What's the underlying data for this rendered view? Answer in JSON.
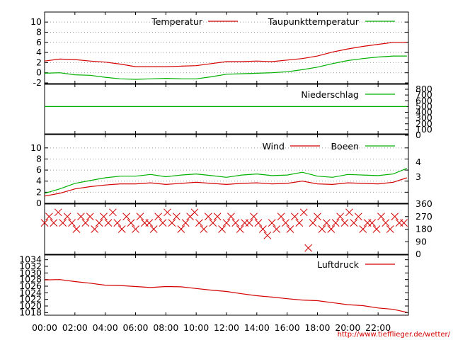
{
  "chart_data": [
    {
      "type": "line",
      "ylim": [
        -2,
        11
      ],
      "yticks": [
        "10",
        "8",
        "6",
        "4",
        "2",
        "0",
        "-2"
      ],
      "grid": true,
      "legend_position": "top-right",
      "x": [
        0,
        1,
        2,
        3,
        4,
        5,
        6,
        7,
        8,
        9,
        10,
        11,
        12,
        13,
        14,
        15,
        16,
        17,
        18,
        19,
        20,
        21,
        22,
        23,
        23.9
      ],
      "series": [
        {
          "name": "Temperatur",
          "color": "#d40000",
          "values": [
            2.3,
            2.7,
            2.6,
            2.3,
            2.1,
            1.7,
            1.2,
            1.2,
            1.2,
            1.3,
            1.4,
            1.8,
            2.2,
            2.2,
            2.3,
            2.2,
            2.5,
            2.8,
            3.3,
            4.1,
            4.7,
            5.2,
            5.6,
            6.0,
            6.0
          ]
        },
        {
          "name": "Taupunkttemperatur",
          "color": "#00b000",
          "values": [
            -0.1,
            0.0,
            -0.4,
            -0.5,
            -0.9,
            -1.2,
            -1.3,
            -1.2,
            -1.1,
            -1.2,
            -1.2,
            -0.8,
            -0.3,
            -0.2,
            -0.1,
            0.0,
            0.2,
            0.6,
            1.1,
            1.8,
            2.4,
            2.8,
            3.1,
            3.3,
            3.3
          ]
        }
      ]
    },
    {
      "type": "line",
      "ylim": [
        0,
        800
      ],
      "yticks": [
        "800",
        "700",
        "600",
        "500",
        "400",
        "300",
        "200",
        "100",
        "0"
      ],
      "grid": false,
      "legend_position": "top-right",
      "x": [
        0,
        23.9
      ],
      "series": [
        {
          "name": "Niederschlag",
          "color": "#00b000",
          "values": [
            500,
            500
          ]
        }
      ]
    },
    {
      "type": "line",
      "ylim": [
        0,
        11
      ],
      "yticks": [
        "10",
        "8",
        "6",
        "4",
        "2",
        "0"
      ],
      "right_labels": [
        "4",
        "3"
      ],
      "grid": true,
      "legend_position": "top-right",
      "x": [
        0,
        1,
        2,
        3,
        4,
        5,
        6,
        7,
        8,
        9,
        10,
        11,
        12,
        13,
        14,
        15,
        16,
        17,
        18,
        19,
        20,
        21,
        22,
        23,
        23.9
      ],
      "series": [
        {
          "name": "Wind",
          "color": "#d40000",
          "values": [
            1.3,
            1.8,
            2.6,
            3.0,
            3.3,
            3.5,
            3.5,
            3.7,
            3.4,
            3.6,
            3.8,
            3.6,
            3.4,
            3.6,
            3.7,
            3.5,
            3.6,
            4.0,
            3.5,
            3.4,
            3.7,
            3.6,
            3.5,
            3.8,
            4.6
          ]
        },
        {
          "name": "Boeen",
          "color": "#00b000",
          "values": [
            1.8,
            2.6,
            3.6,
            4.1,
            4.6,
            4.9,
            4.9,
            5.2,
            4.8,
            5.1,
            5.3,
            5.0,
            4.7,
            5.1,
            5.3,
            5.0,
            5.1,
            5.6,
            4.9,
            4.7,
            5.2,
            5.1,
            5.0,
            5.3,
            6.3
          ]
        }
      ]
    },
    {
      "type": "scatter",
      "ylim": [
        0,
        360
      ],
      "yticks": [
        "360",
        "270",
        "180",
        "90",
        "0"
      ],
      "x": [
        0.0,
        0.3,
        0.6,
        0.9,
        1.2,
        1.5,
        1.8,
        2.1,
        2.4,
        2.7,
        3.0,
        3.3,
        3.6,
        3.9,
        4.2,
        4.5,
        4.8,
        5.1,
        5.4,
        5.7,
        6.0,
        6.3,
        6.6,
        6.9,
        7.2,
        7.5,
        7.8,
        8.1,
        8.4,
        8.7,
        9.0,
        9.3,
        9.6,
        9.9,
        10.2,
        10.5,
        10.8,
        11.1,
        11.4,
        11.7,
        12.0,
        12.3,
        12.6,
        12.9,
        13.2,
        13.5,
        13.8,
        14.1,
        14.4,
        14.7,
        15.0,
        15.3,
        15.6,
        15.9,
        16.2,
        16.5,
        16.8,
        17.1,
        17.4,
        17.7,
        18.0,
        18.3,
        18.6,
        18.9,
        19.2,
        19.5,
        19.8,
        20.1,
        20.4,
        20.7,
        21.0,
        21.3,
        21.6,
        21.9,
        22.2,
        22.5,
        22.8,
        23.1,
        23.4,
        23.7
      ],
      "series": [
        {
          "name": "",
          "color": "#d40000",
          "values": [
            225,
            270,
            225,
            300,
            225,
            270,
            225,
            180,
            270,
            225,
            270,
            180,
            225,
            270,
            225,
            300,
            225,
            180,
            270,
            225,
            180,
            270,
            225,
            225,
            180,
            270,
            225,
            300,
            225,
            270,
            180,
            225,
            270,
            300,
            225,
            180,
            270,
            225,
            270,
            180,
            225,
            270,
            225,
            180,
            225,
            225,
            270,
            225,
            180,
            135,
            225,
            180,
            270,
            225,
            180,
            270,
            225,
            300,
            45,
            225,
            270,
            180,
            225,
            180,
            225,
            270,
            225,
            300,
            225,
            270,
            180,
            225,
            225,
            180,
            270,
            225,
            180,
            270,
            225,
            225
          ]
        }
      ]
    },
    {
      "type": "line",
      "ylim": [
        1017,
        1035
      ],
      "yticks": [
        "1034",
        "1032",
        "1030",
        "1028",
        "1026",
        "1024",
        "1022",
        "1020",
        "1018"
      ],
      "grid": false,
      "legend_position": "top-right",
      "x": [
        0,
        1,
        2,
        3,
        4,
        5,
        6,
        7,
        8,
        9,
        10,
        11,
        12,
        13,
        14,
        15,
        16,
        17,
        18,
        19,
        20,
        21,
        22,
        23,
        23.9
      ],
      "series": [
        {
          "name": "Luftdruck",
          "color": "#d40000",
          "values": [
            1027.9,
            1028.0,
            1027.4,
            1026.9,
            1026.3,
            1026.2,
            1025.9,
            1025.6,
            1025.9,
            1025.8,
            1025.3,
            1024.8,
            1024.4,
            1023.7,
            1023.1,
            1022.7,
            1022.2,
            1021.8,
            1021.6,
            1021.0,
            1020.4,
            1020.1,
            1019.4,
            1019.0,
            1018.1
          ]
        }
      ]
    }
  ],
  "x_axis": {
    "range": [
      0,
      24
    ],
    "tick_labels": [
      "00:00",
      "02:00",
      "04:00",
      "06:00",
      "08:00",
      "10:00",
      "12:00",
      "14:00",
      "16:00",
      "18:00",
      "20:00",
      "22:00"
    ]
  },
  "footer": {
    "source": "http://www.tiefflieger.de/wetter/"
  }
}
